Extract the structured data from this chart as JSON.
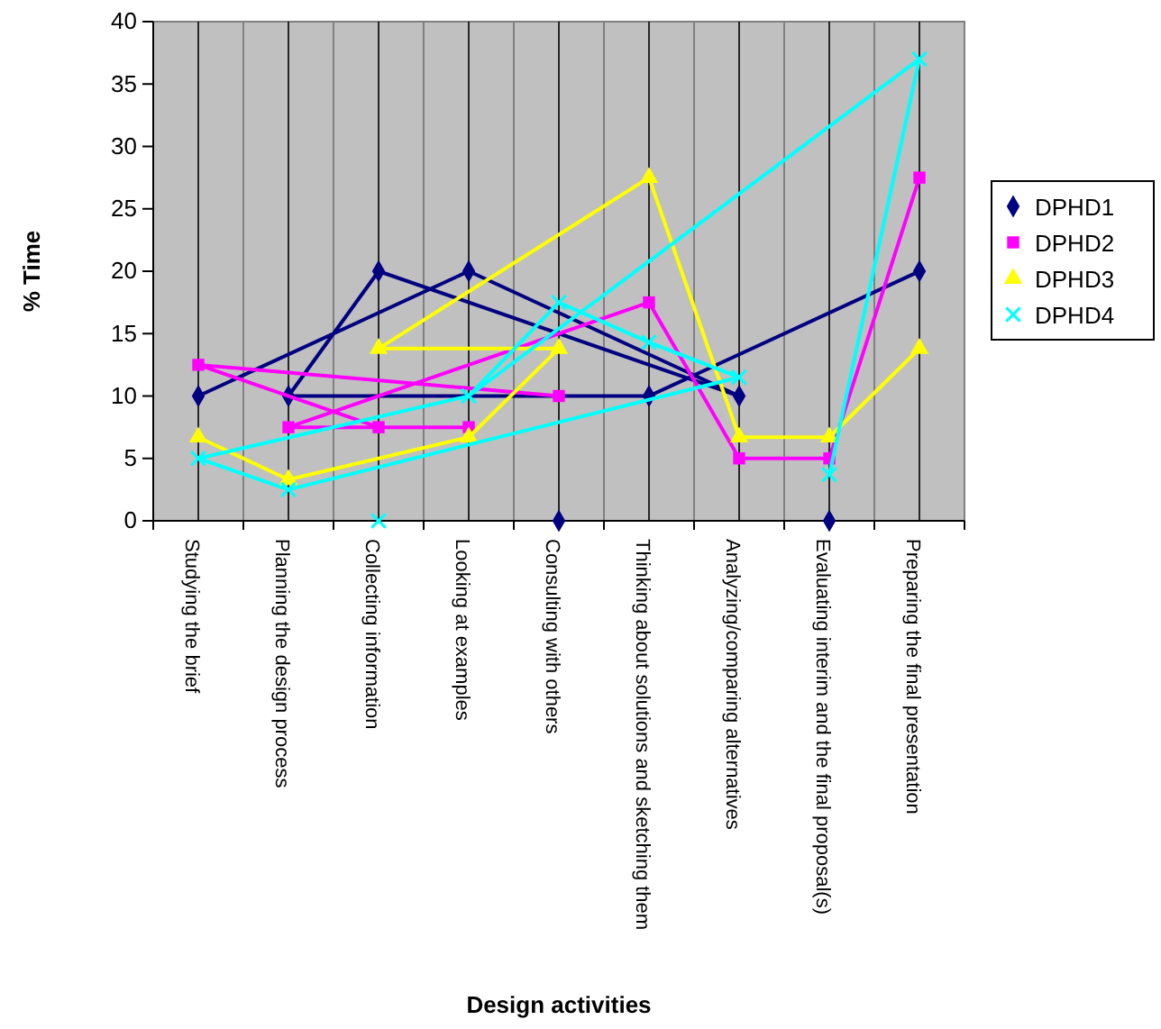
{
  "chart_data": {
    "type": "line",
    "xlabel": "Design activities",
    "ylabel": "% Time",
    "categories": [
      "Studying the brief",
      "Planning the design process",
      "Collecting information",
      "Looking at examples",
      "Consulting with others",
      "Thinking about solutions and sketching them",
      "Analyzing/comparing alternatives",
      "Evaluating interim and the final proposal(s)",
      "Preparing the final presentation"
    ],
    "ylim": [
      0,
      40
    ],
    "yticks": [
      0,
      5,
      10,
      15,
      20,
      25,
      30,
      35,
      40
    ],
    "grid": "x",
    "legend": "right",
    "series": [
      {
        "name": "DPHD1",
        "color": "#000080",
        "marker": "diamond",
        "x": [
          "Studying the brief",
          "Looking at examples",
          "Analyzing/comparing alternatives",
          "Collecting information",
          "Planning the design process",
          "Thinking about solutions and sketching them",
          "Preparing the final presentation",
          null,
          "Consulting with others",
          null,
          "Evaluating interim and the final proposal(s)"
        ],
        "values": [
          10,
          20,
          10,
          20,
          10,
          10,
          20,
          null,
          0,
          null,
          0
        ]
      },
      {
        "name": "DPHD2",
        "color": "#ff00ff",
        "marker": "square",
        "x": [
          "Consulting with others",
          "Studying the brief",
          "Collecting information",
          "Looking at examples",
          "Planning the design process",
          "Thinking about solutions and sketching them",
          "Analyzing/comparing alternatives",
          "Evaluating interim and the final proposal(s)",
          "Preparing the final presentation"
        ],
        "values": [
          10,
          12.5,
          7.5,
          7.5,
          7.5,
          17.5,
          5,
          5,
          27.5
        ]
      },
      {
        "name": "DPHD3",
        "color": "#ffff00",
        "marker": "triangle",
        "x": [
          "Studying the brief",
          "Planning the design process",
          "Looking at examples",
          "Consulting with others",
          "Collecting information",
          "Thinking about solutions and sketching them",
          "Analyzing/comparing alternatives",
          "Evaluating interim and the final proposal(s)",
          "Preparing the final presentation"
        ],
        "values": [
          6.7,
          3.3,
          6.7,
          13.8,
          13.8,
          27.5,
          6.7,
          6.7,
          13.8
        ]
      },
      {
        "name": "DPHD4",
        "color": "#00ffff",
        "marker": "cross",
        "x": [
          "Evaluating interim and the final proposal(s)",
          "Preparing the final presentation",
          "Looking at examples",
          "Studying the brief",
          "Planning the design process",
          "Analyzing/comparing alternatives",
          "Thinking about solutions and sketching them",
          "Consulting with others",
          "Looking at examples",
          null,
          "Collecting information"
        ],
        "values": [
          3.7,
          37,
          10,
          5,
          2.5,
          11.5,
          14.3,
          17.5,
          10,
          null,
          0
        ]
      }
    ]
  }
}
